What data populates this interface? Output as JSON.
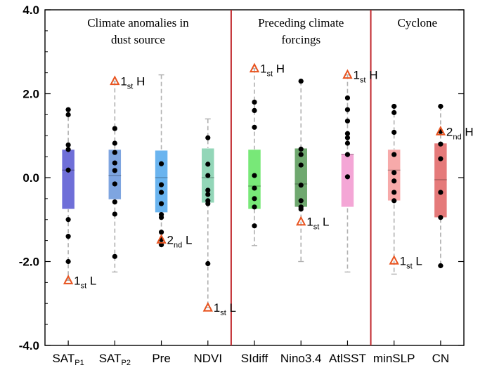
{
  "chart_data": {
    "type": "boxplot",
    "ylim": [
      -4.0,
      4.0
    ],
    "yticks": [
      -4.0,
      -2.0,
      0.0,
      2.0,
      4.0
    ],
    "ytick_labels": [
      "-4.0",
      "-2.0",
      "0.0",
      "2.0",
      "4.0"
    ],
    "separators_after": [
      4,
      7
    ],
    "groups": [
      {
        "key": "climate",
        "lines": [
          "Climate anomalies in",
          "dust source"
        ],
        "start": 0,
        "end": 4
      },
      {
        "key": "forcings",
        "lines": [
          "Preceding climate",
          "forcings"
        ],
        "start": 4,
        "end": 7
      },
      {
        "key": "cyclone",
        "lines": [
          "Cyclone"
        ],
        "start": 7,
        "end": 9
      }
    ],
    "categories": [
      {
        "key": "satp1",
        "label": "SAT",
        "sub": "P1",
        "color": "#6f6fd8",
        "q1": -0.75,
        "median": 0.18,
        "q3": 0.67,
        "whisker_low": -2.45,
        "whisker_high": 1.62,
        "points": [
          1.62,
          1.5,
          0.78,
          0.67,
          0.18,
          -1.0,
          -1.4,
          -2.0
        ],
        "annot": {
          "y": -2.45,
          "num": "1",
          "sub": "st",
          "letter": "L"
        }
      },
      {
        "key": "satp2",
        "label": "SAT",
        "sub": "P2",
        "color": "#7ea5e0",
        "q1": -0.52,
        "median": 0.05,
        "q3": 0.67,
        "whisker_low": -2.25,
        "whisker_high": 2.3,
        "points": [
          1.17,
          0.82,
          0.6,
          0.35,
          0.17,
          -0.15,
          -0.58,
          -0.87,
          -1.88
        ],
        "annot": {
          "y": 2.3,
          "num": "1",
          "sub": "st",
          "letter": "H"
        }
      },
      {
        "key": "pre",
        "label": "Pre",
        "sub": "",
        "color": "#6ab4ef",
        "q1": -0.83,
        "median": 0.0,
        "q3": 0.65,
        "whisker_low": -1.6,
        "whisker_high": 2.45,
        "points": [
          0.33,
          -0.17,
          -0.35,
          -0.62,
          -0.88,
          -0.95,
          -1.3,
          -1.48,
          -1.6
        ],
        "annot": {
          "y": -1.48,
          "num": "2",
          "sub": "nd",
          "letter": "L"
        }
      },
      {
        "key": "ndvi",
        "label": "NDVI",
        "sub": "",
        "color": "#93d6b8",
        "q1": -0.6,
        "median": 0.0,
        "q3": 0.7,
        "whisker_low": -3.1,
        "whisker_high": 1.4,
        "points": [
          0.95,
          0.32,
          0.05,
          -0.3,
          -0.4,
          -0.55,
          -0.62,
          -2.05
        ],
        "annot": {
          "y": -3.1,
          "num": "1",
          "sub": "st",
          "letter": "L"
        }
      },
      {
        "key": "sidiff",
        "label": "SIdiff",
        "sub": "",
        "color": "#78e878",
        "q1": -0.75,
        "median": -0.2,
        "q3": 0.67,
        "whisker_low": -1.62,
        "whisker_high": 2.6,
        "points": [
          1.8,
          1.6,
          1.2,
          0.05,
          -0.25,
          -0.5,
          -0.7,
          -1.15
        ],
        "annot": {
          "y": 2.6,
          "num": "1",
          "sub": "st",
          "letter": "H"
        }
      },
      {
        "key": "nino34",
        "label": "Nino3.4",
        "sub": "",
        "color": "#6fa86f",
        "q1": -0.7,
        "median": -0.15,
        "q3": 0.7,
        "whisker_low": -2.0,
        "whisker_high": 2.3,
        "points": [
          2.3,
          0.68,
          0.55,
          0.3,
          -0.18,
          -0.55,
          -0.7,
          -0.75
        ],
        "annot": {
          "y": -1.05,
          "num": "1",
          "sub": "st",
          "letter": "L"
        }
      },
      {
        "key": "atlsst",
        "label": "AtlSST",
        "sub": "",
        "color": "#f4a6d6",
        "q1": -0.7,
        "median": 0.55,
        "q3": 0.57,
        "whisker_low": -2.25,
        "whisker_high": 2.45,
        "points": [
          1.9,
          1.62,
          1.35,
          1.05,
          0.95,
          0.82,
          0.55,
          0.02
        ],
        "annot": {
          "y": 2.45,
          "num": "1",
          "sub": "st",
          "letter": "H"
        }
      },
      {
        "key": "minslp",
        "label": "minSLP",
        "sub": "",
        "color": "#f7aaaa",
        "q1": -0.55,
        "median": 0.18,
        "q3": 0.67,
        "whisker_low": -2.3,
        "whisker_high": 1.7,
        "points": [
          1.7,
          1.55,
          1.08,
          0.55,
          0.12,
          -0.08,
          -0.35,
          -0.55
        ],
        "annot": {
          "y": -1.98,
          "num": "1",
          "sub": "st",
          "letter": "L"
        }
      },
      {
        "key": "cn",
        "label": "CN",
        "sub": "",
        "color": "#e57a7a",
        "q1": -0.95,
        "median": -0.05,
        "q3": 0.82,
        "whisker_low": -2.1,
        "whisker_high": 1.7,
        "points": [
          1.7,
          1.1,
          0.8,
          0.45,
          -0.35,
          -0.95,
          -2.1
        ],
        "annot": {
          "y": 1.1,
          "num": "2",
          "sub": "nd",
          "letter": "H"
        }
      }
    ]
  }
}
